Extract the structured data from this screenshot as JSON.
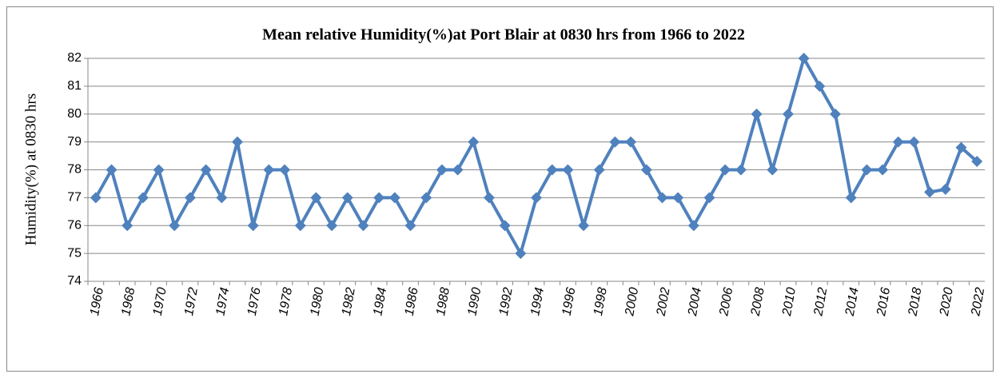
{
  "chart_data": {
    "type": "line",
    "title": "Mean relative Humidity(%)at Port Blair at 0830 hrs from 1966 to 2022",
    "y_label": "Humidity(%) at 0830 hrs",
    "categories": [
      "1966",
      null,
      "1968",
      null,
      "1970",
      null,
      "1972",
      null,
      "1974",
      null,
      "1976",
      null,
      "1978",
      null,
      "1980",
      null,
      "1982",
      null,
      "1984",
      null,
      "1986",
      null,
      "1988",
      null,
      "1990",
      null,
      "1992",
      null,
      "1994",
      null,
      "1996",
      null,
      "1998",
      null,
      "2000",
      null,
      "2002",
      null,
      "2004",
      null,
      "2006",
      null,
      "2008",
      null,
      "2010",
      null,
      "2012",
      null,
      "2014",
      null,
      "2016",
      null,
      "2018",
      null,
      "2020",
      null,
      "2022"
    ],
    "series": [
      {
        "name": "Humidity",
        "color": "#4f81bd",
        "values": [
          77,
          78,
          76,
          77,
          78,
          76,
          77,
          78,
          77,
          79,
          76,
          78,
          78,
          76,
          77,
          76,
          77,
          76,
          77,
          77,
          76,
          77,
          78,
          78,
          79,
          77,
          76,
          75,
          77,
          78,
          78,
          76,
          78,
          79,
          79,
          78,
          77,
          77,
          76,
          77,
          78,
          78,
          80,
          78,
          80,
          82,
          81,
          80,
          77,
          78,
          78,
          79,
          79,
          77.2,
          77.3,
          78.8,
          78.3
        ]
      }
    ],
    "ylim": [
      74,
      82
    ],
    "yticks": [
      74,
      75,
      76,
      77,
      78,
      79,
      80,
      81,
      82
    ],
    "grid": true
  }
}
